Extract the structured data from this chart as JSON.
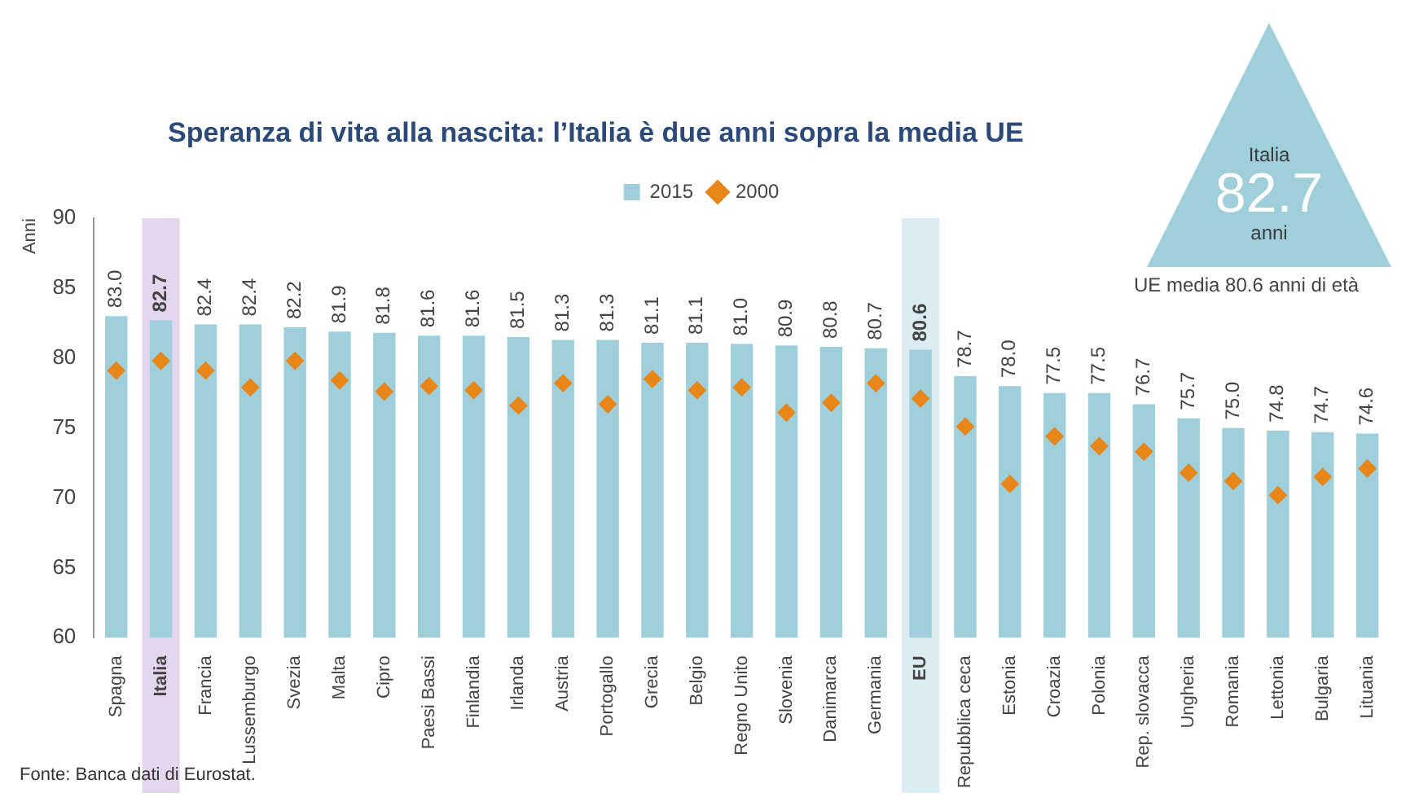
{
  "chart_data": {
    "type": "bar",
    "title": "Speranza di vita alla nascita: l’Italia è due anni sopra la media UE",
    "ylabel": "Anni",
    "categories": [
      "Spagna",
      "Italia",
      "Francia",
      "Lussemburgo",
      "Svezia",
      "Malta",
      "Cipro",
      "Paesi Bassi",
      "Finlandia",
      "Irlanda",
      "Austria",
      "Portogallo",
      "Grecia",
      "Belgio",
      "Regno Unito",
      "Slovenia",
      "Danimarca",
      "Germania",
      "EU",
      "Repubblica ceca",
      "Estonia",
      "Croazia",
      "Polonia",
      "Rep. slovacca",
      "Ungheria",
      "Romania",
      "Lettonia",
      "Bulgaria",
      "Lituania"
    ],
    "series": [
      {
        "name": "2015",
        "color": "#9ecfdb",
        "values": [
          83.0,
          82.7,
          82.4,
          82.4,
          82.2,
          81.9,
          81.8,
          81.6,
          81.6,
          81.5,
          81.3,
          81.3,
          81.1,
          81.1,
          81.0,
          80.9,
          80.8,
          80.7,
          80.6,
          78.7,
          78.0,
          77.5,
          77.5,
          76.7,
          75.7,
          75.0,
          74.8,
          74.7,
          74.6
        ],
        "value_labels": [
          "83.0",
          "82.7",
          "82.4",
          "82.4",
          "82.2",
          "81.9",
          "81.8",
          "81.6",
          "81.6",
          "81.5",
          "81.3",
          "81.3",
          "81.1",
          "81.1",
          "81.0",
          "80.9",
          "80.8",
          "80.7",
          "80.6",
          "78.7",
          "78.0",
          "77.5",
          "77.5",
          "76.7",
          "75.7",
          "75.0",
          "74.8",
          "74.7",
          "74.6"
        ]
      },
      {
        "name": "2000",
        "type": "scatter",
        "marker": "diamond",
        "color": "#e8861a",
        "values": [
          79.1,
          79.8,
          79.1,
          77.9,
          79.8,
          78.4,
          77.6,
          78.0,
          77.7,
          76.6,
          78.2,
          76.7,
          78.5,
          77.7,
          77.9,
          76.1,
          76.8,
          78.2,
          77.1,
          75.1,
          71.0,
          74.4,
          73.7,
          73.3,
          71.8,
          71.2,
          70.2,
          71.5,
          72.1
        ]
      }
    ],
    "ylim": [
      60,
      90
    ],
    "yticks": [
      60,
      65,
      70,
      75,
      80,
      85,
      90
    ],
    "grid": false,
    "legend": "top",
    "bands": [
      {
        "axis": "x",
        "from": "Italia",
        "to": "Italia",
        "color": "#e3d6ee"
      },
      {
        "axis": "x",
        "from": "EU",
        "to": "EU",
        "color": "#dcecf3"
      }
    ],
    "annotations": [
      "Italia",
      "82.7",
      "anni",
      "UE media 80.6 anni di età",
      "Fonte: Banca dati di Eurostat."
    ]
  }
}
